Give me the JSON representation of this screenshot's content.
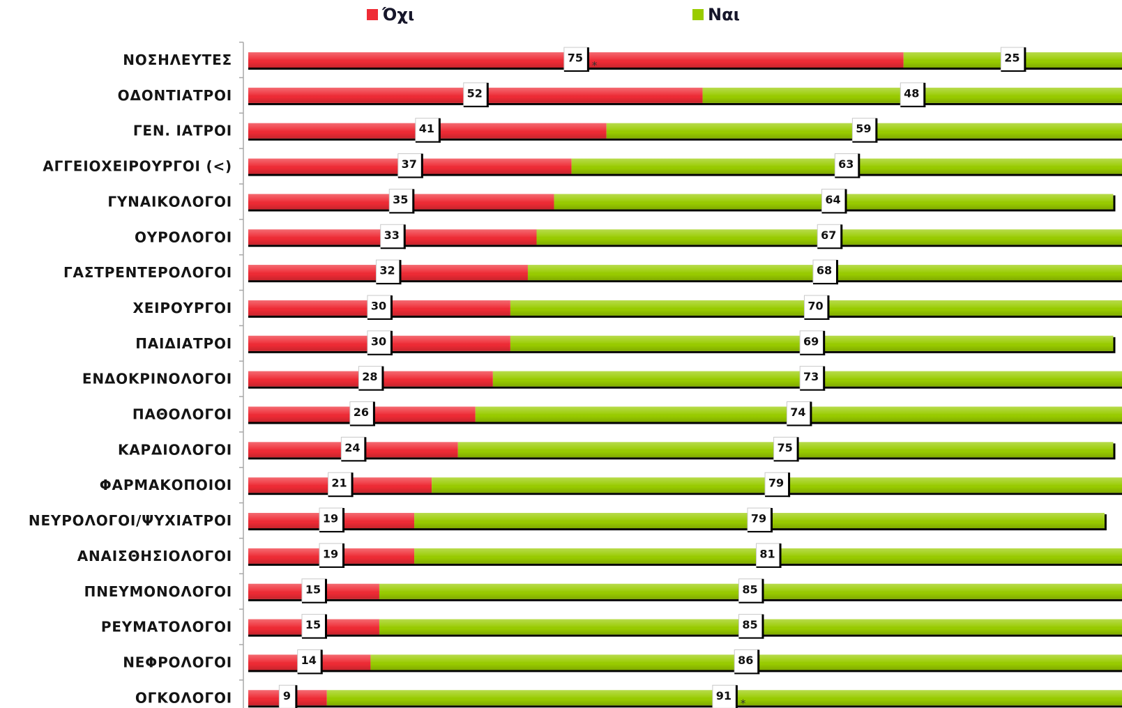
{
  "chart_data": {
    "type": "bar",
    "orientation": "horizontal",
    "stacked": true,
    "categories": [
      "ΝΟΣΗΛΕΥΤΕΣ",
      "ΟΔΟΝΤΙΑΤΡΟΙ",
      "ΓΕΝ. ΙΑΤΡΟΙ",
      "ΑΓΓΕΙΟΧΕΙΡΟΥΡΓΟΙ (<)",
      "ΓΥΝΑΙΚΟΛΟΓΟΙ",
      "ΟΥΡΟΛΟΓΟΙ",
      "ΓΑΣΤΡΕΝΤΕΡΟΛΟΓΟΙ",
      "ΧΕΙΡΟΥΡΓΟΙ",
      "ΠΑΙΔΙΑΤΡΟΙ",
      "ΕΝΔΟΚΡΙΝΟΛΟΓΟΙ",
      "ΠΑΘΟΛΟΓΟΙ",
      "ΚΑΡΔΙΟΛΟΓΟΙ",
      "ΦΑΡΜΑΚΟΠΟΙΟΙ",
      "ΝΕΥΡΟΛΟΓΟΙ/ΨΥΧΙΑΤΡΟΙ",
      "ΑΝΑΙΣΘΗΣΙΟΛΟΓΟΙ",
      "ΠΝΕΥΜΟΝΟΛΟΓΟΙ",
      "ΡΕΥΜΑΤΟΛΟΓΟΙ",
      "ΝΕΦΡΟΛΟΓΟΙ",
      "ΟΓΚΟΛΟΓΟΙ"
    ],
    "series": [
      {
        "name": "Όχι",
        "color": "#ef2b35",
        "values": [
          75,
          52,
          41,
          37,
          35,
          33,
          32,
          30,
          30,
          28,
          26,
          24,
          21,
          19,
          19,
          15,
          15,
          14,
          9
        ]
      },
      {
        "name": "Ναι",
        "color": "#99cc00",
        "values": [
          25,
          48,
          59,
          63,
          64,
          67,
          68,
          70,
          69,
          73,
          74,
          75,
          79,
          79,
          81,
          85,
          85,
          86,
          91
        ]
      }
    ],
    "xlim": [
      0,
      100
    ],
    "data_labels": true,
    "annotations": [
      {
        "category_index": 0,
        "series_index": 0,
        "text": "*"
      },
      {
        "category_index": 18,
        "series_index": 1,
        "text": "*"
      }
    ],
    "legend_position": "top",
    "grid": false
  }
}
